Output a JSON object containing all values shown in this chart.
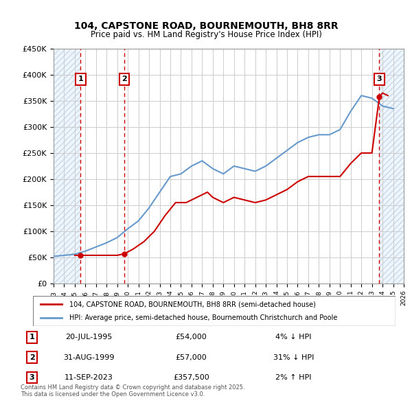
{
  "title": "104, CAPSTONE ROAD, BOURNEMOUTH, BH8 8RR",
  "subtitle": "Price paid vs. HM Land Registry's House Price Index (HPI)",
  "legend_line1": "104, CAPSTONE ROAD, BOURNEMOUTH, BH8 8RR (semi-detached house)",
  "legend_line2": "HPI: Average price, semi-detached house, Bournemouth Christchurch and Poole",
  "footer": "Contains HM Land Registry data © Crown copyright and database right 2025.\nThis data is licensed under the Open Government Licence v3.0.",
  "sale_points": [
    {
      "num": 1,
      "date": "20-JUL-1995",
      "price": 54000,
      "pct": "4%",
      "dir": "↓",
      "x_year": 1995.55
    },
    {
      "num": 2,
      "date": "31-AUG-1999",
      "price": 57000,
      "pct": "31%",
      "dir": "↓",
      "x_year": 1999.67
    },
    {
      "num": 3,
      "date": "11-SEP-2023",
      "price": 357500,
      "pct": "2%",
      "dir": "↑",
      "x_year": 2023.7
    }
  ],
  "red_color": "#cc0000",
  "blue_color": "#6699cc",
  "hatch_color": "#ccddee",
  "grid_color": "#cccccc",
  "bg_color": "#ffffff",
  "plot_bg": "#ffffff",
  "hatch_left_end": 1995.55,
  "hatch_right_start": 2023.7,
  "xmin": 1993,
  "xmax": 2026,
  "ymin": 0,
  "ymax": 450000,
  "hpi_data": {
    "years": [
      1993,
      1994,
      1995,
      1996,
      1997,
      1998,
      1999,
      2000,
      2001,
      2002,
      2003,
      2004,
      2005,
      2006,
      2007,
      2008,
      2009,
      2010,
      2011,
      2012,
      2013,
      2014,
      2015,
      2016,
      2017,
      2018,
      2019,
      2020,
      2021,
      2022,
      2023,
      2024,
      2025
    ],
    "values": [
      52000,
      54000,
      56000,
      62000,
      70000,
      78000,
      88000,
      105000,
      120000,
      145000,
      175000,
      205000,
      210000,
      225000,
      235000,
      220000,
      210000,
      225000,
      220000,
      215000,
      225000,
      240000,
      255000,
      270000,
      280000,
      285000,
      285000,
      295000,
      330000,
      360000,
      355000,
      340000,
      335000
    ]
  },
  "red_data": {
    "years": [
      1995.0,
      1995.55,
      1999.0,
      1999.67,
      2000.5,
      2001.5,
      2002.5,
      2003.5,
      2004.5,
      2005.5,
      2006.5,
      2007.5,
      2008.0,
      2009.0,
      2010.0,
      2011.0,
      2012.0,
      2013.0,
      2014.0,
      2015.0,
      2016.0,
      2017.0,
      2018.0,
      2019.0,
      2020.0,
      2021.0,
      2022.0,
      2023.0,
      2023.7,
      2024.0,
      2024.5
    ],
    "values": [
      54000,
      54000,
      54000,
      57000,
      66000,
      80000,
      100000,
      130000,
      155000,
      155000,
      165000,
      175000,
      165000,
      155000,
      165000,
      160000,
      155000,
      160000,
      170000,
      180000,
      195000,
      205000,
      205000,
      205000,
      205000,
      230000,
      250000,
      250000,
      357500,
      365000,
      360000
    ]
  }
}
